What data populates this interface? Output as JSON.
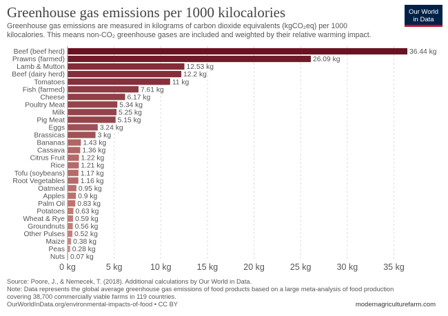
{
  "title": "Greenhouse gas emissions per 1000 kilocalories",
  "subtitle_line1": "Greenhouse gas emissions are measured in kilograms of carbon dioxide equivalents (kgCO₂eq) per 1000",
  "subtitle_line2": "kilocalories. This means non-CO₂ greenhouse gases are included and weighted by their relative warming impact.",
  "logo_line1": "Our World",
  "logo_line2": "in Data",
  "chart_data": {
    "type": "bar",
    "orientation": "horizontal",
    "categories": [
      "Beef (beef herd)",
      "Prawns (farmed)",
      "Lamb & Mutton",
      "Beef (dairy herd)",
      "Tomatoes",
      "Fish (farmed)",
      "Cheese",
      "Poultry Meat",
      "Milk",
      "Pig Meat",
      "Eggs",
      "Brassicas",
      "Bananas",
      "Cassava",
      "Citrus Fruit",
      "Rice",
      "Tofu (soybeans)",
      "Root Vegetables",
      "Oatmeal",
      "Apples",
      "Palm Oil",
      "Potatoes",
      "Wheat & Rye",
      "Groundnuts",
      "Other Pulses",
      "Maize",
      "Peas",
      "Nuts"
    ],
    "values": [
      36.44,
      26.09,
      12.53,
      12.2,
      11,
      7.61,
      6.17,
      5.34,
      5.25,
      5.15,
      3.24,
      3,
      1.43,
      1.36,
      1.22,
      1.21,
      1.17,
      1.16,
      0.95,
      0.9,
      0.83,
      0.63,
      0.59,
      0.56,
      0.52,
      0.38,
      0.28,
      0.07
    ],
    "value_labels": [
      "36.44 kg",
      "26.09 kg",
      "12.53 kg",
      "12.2 kg",
      "11 kg",
      "7.61 kg",
      "6.17 kg",
      "5.34 kg",
      "5.25 kg",
      "5.15 kg",
      "3.24 kg",
      "3 kg",
      "1.43 kg",
      "1.36 kg",
      "1.22 kg",
      "1.21 kg",
      "1.17 kg",
      "1.16 kg",
      "0.95 kg",
      "0.9 kg",
      "0.83 kg",
      "0.63 kg",
      "0.59 kg",
      "0.56 kg",
      "0.52 kg",
      "0.38 kg",
      "0.28 kg",
      "0.07 kg"
    ],
    "xlim": [
      0,
      36.44
    ],
    "x_ticks": [
      0,
      5,
      10,
      15,
      20,
      25,
      30,
      35
    ],
    "x_tick_labels": [
      "0 kg",
      "5 kg",
      "10 kg",
      "15 kg",
      "20 kg",
      "25 kg",
      "30 kg",
      "35 kg"
    ],
    "grid": "vertical dashed",
    "color_scale": [
      "#6b1122",
      "#f2b4a2"
    ]
  },
  "footer": {
    "source": "Source: Poore, J., & Nemecek, T. (2018). Additional calculations by Our World in Data.",
    "note_line1": "Note: Data represents the global average greenhouse gas emissions of food products based on a large meta-analysis of food production",
    "note_line2": "covering 38,700 commercially viable farms in 119 countries.",
    "url": "OurWorldInData.org/environmental-impacts-of-food • CC BY"
  },
  "watermark": "modernagriculturefarm.com"
}
